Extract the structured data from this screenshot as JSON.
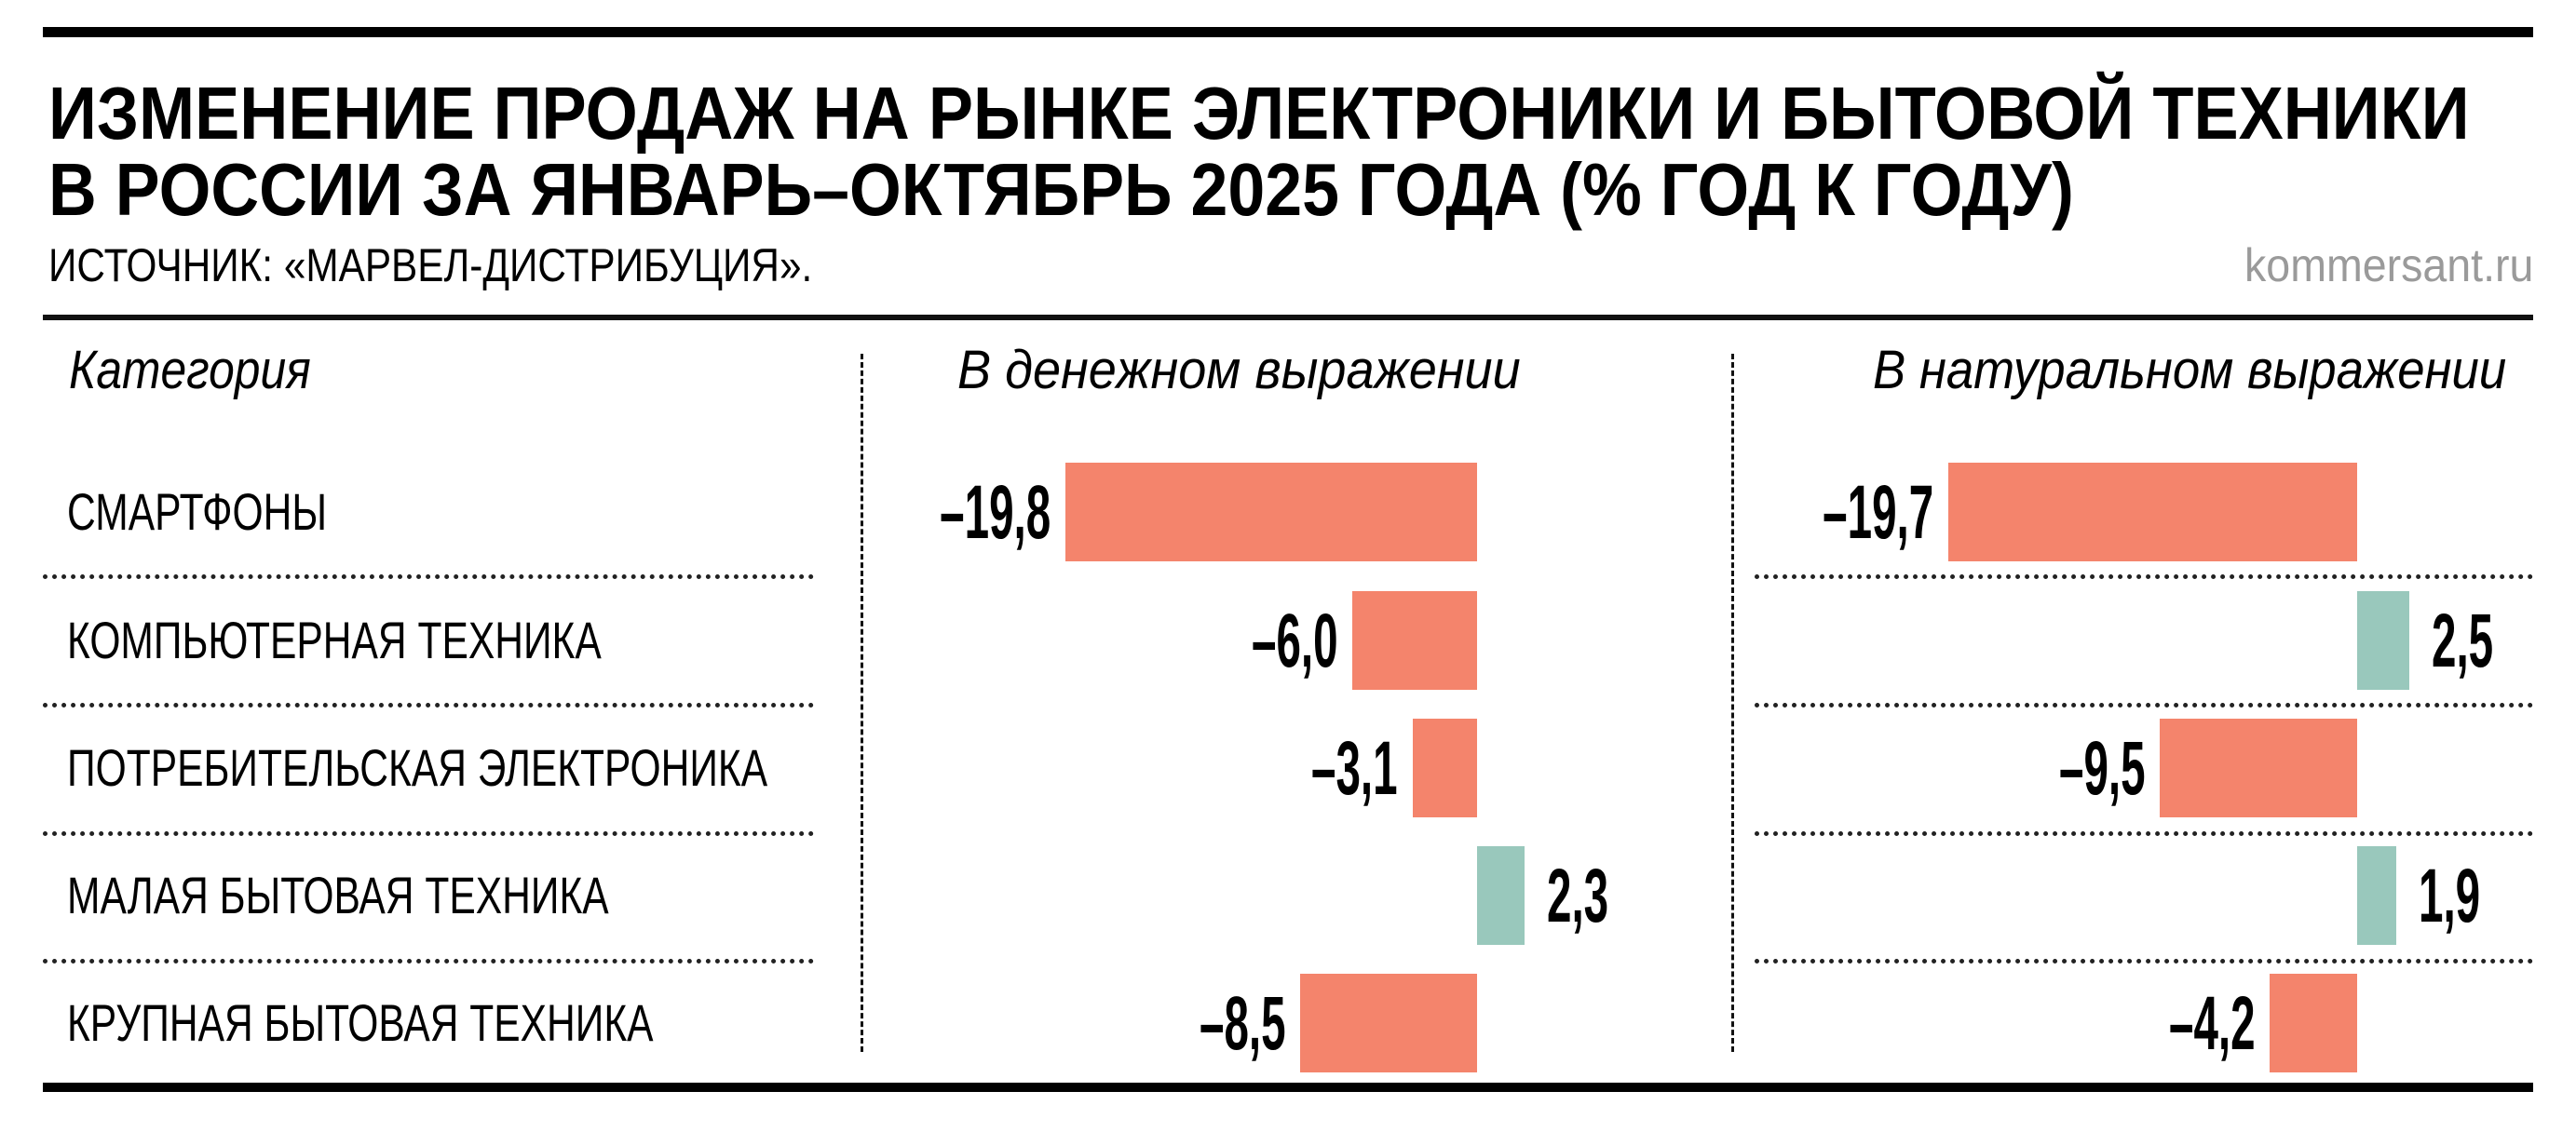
{
  "header": {
    "title_line1": "ИЗМЕНЕНИЕ ПРОДАЖ НА РЫНКЕ ЭЛЕКТРОНИКИ И БЫТОВОЙ ТЕХНИКИ",
    "title_line2": "В РОССИИ ЗА ЯНВАРЬ–ОКТЯБРЬ 2025 ГОДА (% ГОД К ГОДУ)",
    "source": "ИСТОЧНИК: «МАРВЕЛ-ДИСТРИБУЦИЯ».",
    "brand": "kommersant.ru"
  },
  "colors": {
    "negative": "#F4846C",
    "positive": "#99C8BC"
  },
  "chart_data": {
    "type": "bar",
    "orientation": "horizontal",
    "title": "ИЗМЕНЕНИЕ ПРОДАЖ НА РЫНКЕ ЭЛЕКТРОНИКИ И БЫТОВОЙ ТЕХНИКИ В РОССИИ ЗА ЯНВАРЬ–ОКТЯБРЬ 2025 ГОДА (% ГОД К ГОДУ)",
    "category_header": "Категория",
    "categories": [
      "СМАРТФОНЫ",
      "КОМПЬЮТЕРНАЯ ТЕХНИКА",
      "ПОТРЕБИТЕЛЬСКАЯ ЭЛЕКТРОНИКА",
      "МАЛАЯ БЫТОВАЯ ТЕХНИКА",
      "КРУПНАЯ БЫТОВАЯ ТЕХНИКА"
    ],
    "series": [
      {
        "name": "В денежном выражении",
        "values": [
          -19.8,
          -6.0,
          -3.1,
          2.3,
          -8.5
        ],
        "labels": [
          "–19,8",
          "–6,0",
          "–3,1",
          "2,3",
          "–8,5"
        ]
      },
      {
        "name": "В натуральном выражении",
        "values": [
          -19.7,
          2.5,
          -9.5,
          1.9,
          -4.2
        ],
        "labels": [
          "–19,7",
          "2,5",
          "–9,5",
          "1,9",
          "–4,2"
        ]
      }
    ],
    "grid": false,
    "legend": "none"
  }
}
